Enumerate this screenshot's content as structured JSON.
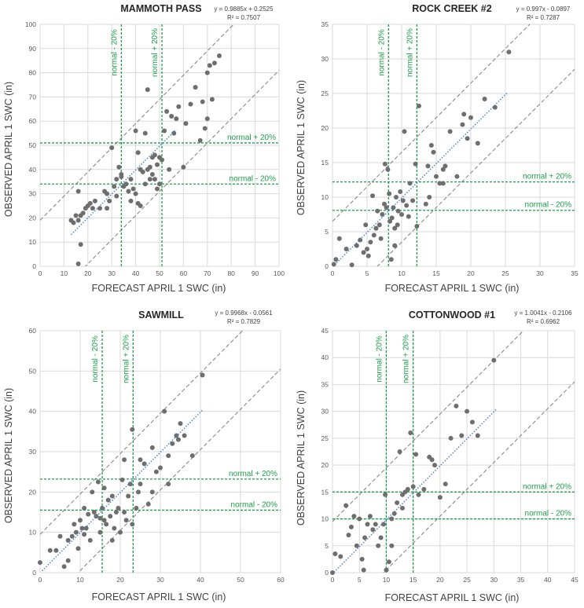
{
  "colors": {
    "points": "#6e6e6e",
    "bounds": "#7f7f7f",
    "normal_lines": "#1e9e4a",
    "trend": "#4a7ec3",
    "grid": "#d9d9d9"
  },
  "chart_data": [
    {
      "type": "scatter",
      "title": "MAMMOTH PASS",
      "equation": "y = 0.9885x + 0.2525",
      "r2": "R² = 0.7507",
      "xlabel": "FORECAST APRIL 1 SWC (in)",
      "ylabel": "OBSERVED APRIL 1 SWC (in)",
      "xlim": [
        0,
        100
      ],
      "ylim": [
        0,
        100
      ],
      "step": 10,
      "xticks": [
        "0",
        "10",
        "20",
        "30",
        "40",
        "50",
        "60",
        "70",
        "80",
        "90",
        "100"
      ],
      "yticks": [
        "0",
        "10",
        "20",
        "30",
        "40",
        "50",
        "60",
        "70",
        "80",
        "90",
        "100"
      ],
      "normal_low": 34,
      "normal_high": 51,
      "labels": {
        "vlow": "normal - 20%",
        "vhigh": "normal + 20%",
        "hlow": "normal - 20%",
        "hhigh": "normal + 20%"
      },
      "trend": {
        "slope": 0.9885,
        "intercept": 0.2525,
        "x_range": [
          13,
          57
        ]
      },
      "bound_upper": {
        "slope": 1,
        "intercept": 19
      },
      "bound_lower": {
        "slope": 1,
        "intercept": -19
      },
      "points": [
        [
          16,
          1
        ],
        [
          17,
          9
        ],
        [
          13,
          19
        ],
        [
          14,
          18
        ],
        [
          15,
          21
        ],
        [
          16,
          31
        ],
        [
          16,
          19
        ],
        [
          17,
          21
        ],
        [
          18,
          22
        ],
        [
          19,
          24
        ],
        [
          20,
          25
        ],
        [
          21,
          26
        ],
        [
          22,
          24
        ],
        [
          23,
          27
        ],
        [
          25,
          24
        ],
        [
          27,
          31
        ],
        [
          28,
          30
        ],
        [
          28,
          24
        ],
        [
          29,
          27
        ],
        [
          30,
          49
        ],
        [
          31,
          33
        ],
        [
          32,
          29
        ],
        [
          32,
          36
        ],
        [
          33,
          41
        ],
        [
          34,
          38
        ],
        [
          34,
          37
        ],
        [
          35,
          33
        ],
        [
          36,
          34
        ],
        [
          37,
          31
        ],
        [
          38,
          36
        ],
        [
          38,
          27
        ],
        [
          39,
          32
        ],
        [
          40,
          30
        ],
        [
          41,
          26
        ],
        [
          41,
          47
        ],
        [
          42,
          25
        ],
        [
          42,
          40
        ],
        [
          43,
          39
        ],
        [
          44,
          34
        ],
        [
          44,
          55
        ],
        [
          45,
          73
        ],
        [
          45,
          40
        ],
        [
          46,
          41
        ],
        [
          46,
          36
        ],
        [
          47,
          38
        ],
        [
          47,
          45
        ],
        [
          48,
          36
        ],
        [
          48,
          46
        ],
        [
          49,
          32
        ],
        [
          49,
          42
        ],
        [
          50,
          34
        ],
        [
          50,
          45
        ],
        [
          51,
          44
        ],
        [
          52,
          56
        ],
        [
          53,
          64
        ],
        [
          54,
          40
        ],
        [
          55,
          62
        ],
        [
          56,
          55
        ],
        [
          57,
          61
        ],
        [
          58,
          66
        ],
        [
          60,
          41
        ],
        [
          61,
          59
        ],
        [
          63,
          67
        ],
        [
          65,
          74
        ],
        [
          67,
          52
        ],
        [
          68,
          68
        ],
        [
          69,
          57
        ],
        [
          70,
          80
        ],
        [
          71,
          83
        ],
        [
          72,
          69
        ],
        [
          73,
          84
        ],
        [
          75,
          87
        ],
        [
          70,
          61
        ],
        [
          40,
          56
        ]
      ]
    },
    {
      "type": "scatter",
      "title": "ROCK CREEK #2",
      "equation": "y = 0.997x - 0.0897",
      "r2": "R² = 0.7287",
      "xlabel": "FORECAST APRIL 1 SWC (in)",
      "ylabel": "OBSERVED APRIL 1 SWC (in)",
      "xlim": [
        0,
        35
      ],
      "ylim": [
        0,
        35
      ],
      "step": 5,
      "xticks": [
        "0",
        "5",
        "10",
        "15",
        "20",
        "25",
        "30",
        "35"
      ],
      "yticks": [
        "0",
        "5",
        "10",
        "15",
        "20",
        "25",
        "30",
        "35"
      ],
      "normal_low": 8.1,
      "normal_high": 12.2,
      "labels": {
        "vlow": "normal - 20%",
        "vhigh": "normal + 20%",
        "hlow": "normal - 20%",
        "hhigh": "normal + 20%"
      },
      "trend": {
        "slope": 0.997,
        "intercept": -0.0897,
        "x_range": [
          0.3,
          25.3
        ]
      },
      "bound_upper": {
        "slope": 1,
        "intercept": 6.5
      },
      "bound_lower": {
        "slope": 1,
        "intercept": -6.5
      },
      "points": [
        [
          0.2,
          0.3
        ],
        [
          0.5,
          1.0
        ],
        [
          1.0,
          4.0
        ],
        [
          2.0,
          2.5
        ],
        [
          2.8,
          0.2
        ],
        [
          3.5,
          3.0
        ],
        [
          4.0,
          3.8
        ],
        [
          4.5,
          2.0
        ],
        [
          4.8,
          6.0
        ],
        [
          5.0,
          2.5
        ],
        [
          5.2,
          1.5
        ],
        [
          5.5,
          3.5
        ],
        [
          5.8,
          10.2
        ],
        [
          6.0,
          4.5
        ],
        [
          6.3,
          5.5
        ],
        [
          6.5,
          8.0
        ],
        [
          6.8,
          6.0
        ],
        [
          7.0,
          4.0
        ],
        [
          7.2,
          7.5
        ],
        [
          7.5,
          9.0
        ],
        [
          7.6,
          14.8
        ],
        [
          7.8,
          8.5
        ],
        [
          8.0,
          14.0
        ],
        [
          8.2,
          10.5
        ],
        [
          8.3,
          6.5
        ],
        [
          8.5,
          1.0
        ],
        [
          8.6,
          7.0
        ],
        [
          8.8,
          8.5
        ],
        [
          9.0,
          5.5
        ],
        [
          9.2,
          10.0
        ],
        [
          9.4,
          6.0
        ],
        [
          9.5,
          8.0
        ],
        [
          9.8,
          10.8
        ],
        [
          10.0,
          7.5
        ],
        [
          10.2,
          9.5
        ],
        [
          10.4,
          19.5
        ],
        [
          10.7,
          8.8
        ],
        [
          11.0,
          7.2
        ],
        [
          11.2,
          12.0
        ],
        [
          11.6,
          9.5
        ],
        [
          12.0,
          14.8
        ],
        [
          12.2,
          5.8
        ],
        [
          12.5,
          23.2
        ],
        [
          13.5,
          9.0
        ],
        [
          13.8,
          14.5
        ],
        [
          14.0,
          10.0
        ],
        [
          14.3,
          17.5
        ],
        [
          14.6,
          16.5
        ],
        [
          15.0,
          13.0
        ],
        [
          15.5,
          12.0
        ],
        [
          16.0,
          14.0
        ],
        [
          16.3,
          14.5
        ],
        [
          17.0,
          19.5
        ],
        [
          18.0,
          13.0
        ],
        [
          18.8,
          20.5
        ],
        [
          19.0,
          22.0
        ],
        [
          19.5,
          18.5
        ],
        [
          20.0,
          21.5
        ],
        [
          21.0,
          17.8
        ],
        [
          22.0,
          24.2
        ],
        [
          25.5,
          31.0
        ],
        [
          23.5,
          23.0
        ],
        [
          16.0,
          12.0
        ],
        [
          9.0,
          3.0
        ]
      ]
    },
    {
      "type": "scatter",
      "title": "SAWMILL",
      "equation": "y = 0.9968x - 0.0561",
      "r2": "R² = 0.7829",
      "xlabel": "FORECAST APRIL 1 SWC (in)",
      "ylabel": "OBSERVED APRIL 1 SWC (in)",
      "xlim": [
        0,
        60
      ],
      "ylim": [
        0,
        60
      ],
      "step": 10,
      "xticks": [
        "0",
        "10",
        "20",
        "30",
        "40",
        "50",
        "60"
      ],
      "yticks": [
        "0",
        "10",
        "20",
        "30",
        "40",
        "50",
        "60"
      ],
      "normal_low": 15.5,
      "normal_high": 23.2,
      "labels": {
        "vlow": "normal - 20%",
        "vhigh": "normal + 20%",
        "hlow": "normal - 20%",
        "hhigh": "normal + 20%"
      },
      "trend": {
        "slope": 0.9968,
        "intercept": -0.0561,
        "x_range": [
          0.5,
          40.5
        ]
      },
      "bound_upper": {
        "slope": 1,
        "intercept": 9.5
      },
      "bound_lower": {
        "slope": 1,
        "intercept": -9.5
      },
      "points": [
        [
          0,
          2.5
        ],
        [
          2.5,
          5.5
        ],
        [
          4,
          5.5
        ],
        [
          5,
          9
        ],
        [
          6,
          1.5
        ],
        [
          7,
          8
        ],
        [
          7,
          3
        ],
        [
          8,
          9
        ],
        [
          8.5,
          12
        ],
        [
          9,
          10
        ],
        [
          9.5,
          6
        ],
        [
          10,
          13
        ],
        [
          10.5,
          11
        ],
        [
          11,
          9.5
        ],
        [
          11,
          16
        ],
        [
          11.5,
          11
        ],
        [
          12,
          14.5
        ],
        [
          12.5,
          8
        ],
        [
          13,
          20
        ],
        [
          13.5,
          15
        ],
        [
          14,
          14
        ],
        [
          14.5,
          22.5
        ],
        [
          15,
          13.5
        ],
        [
          15.5,
          16
        ],
        [
          16,
          13
        ],
        [
          16,
          21
        ],
        [
          16.5,
          12
        ],
        [
          17,
          18
        ],
        [
          17.5,
          14
        ],
        [
          18,
          19
        ],
        [
          18,
          8
        ],
        [
          18.5,
          11
        ],
        [
          19,
          15
        ],
        [
          19.5,
          16
        ],
        [
          20,
          10
        ],
        [
          20.5,
          23
        ],
        [
          21,
          15
        ],
        [
          21,
          28
        ],
        [
          21.5,
          13
        ],
        [
          22,
          19
        ],
        [
          22.5,
          22
        ],
        [
          23,
          12
        ],
        [
          23,
          35.5
        ],
        [
          24,
          16
        ],
        [
          25,
          22
        ],
        [
          25,
          28
        ],
        [
          26,
          27
        ],
        [
          27,
          17
        ],
        [
          28,
          20
        ],
        [
          28,
          31
        ],
        [
          29,
          25
        ],
        [
          30,
          26
        ],
        [
          31,
          40
        ],
        [
          32,
          22
        ],
        [
          32,
          29
        ],
        [
          33,
          32
        ],
        [
          34,
          34
        ],
        [
          34.5,
          33
        ],
        [
          35,
          37
        ],
        [
          36,
          34
        ],
        [
          38,
          29
        ],
        [
          40.5,
          49
        ],
        [
          15,
          10
        ],
        [
          24.5,
          20
        ]
      ]
    },
    {
      "type": "scatter",
      "title": "COTTONWOOD #1",
      "equation": "y = 1.0041x - 0.2106",
      "r2": "R² = 0.6962",
      "xlabel": "FORECAST APRIL 1 SWC (in)",
      "ylabel": "OBSERVED APRIL 1 SWC (in)",
      "xlim": [
        0,
        45
      ],
      "ylim": [
        0,
        45
      ],
      "step": 5,
      "xticks": [
        "0",
        "5",
        "10",
        "15",
        "20",
        "25",
        "30",
        "35",
        "40",
        "45"
      ],
      "yticks": [
        "0",
        "5",
        "10",
        "15",
        "20",
        "25",
        "30",
        "35",
        "40",
        "45"
      ],
      "normal_low": 10,
      "normal_high": 15,
      "labels": {
        "vlow": "normal - 20%",
        "vhigh": "normal + 20%",
        "hlow": "normal - 20%",
        "hhigh": "normal + 20%"
      },
      "trend": {
        "slope": 1.0041,
        "intercept": -0.2106,
        "x_range": [
          0.3,
          30.5
        ]
      },
      "bound_upper": {
        "slope": 1,
        "intercept": 9.5
      },
      "bound_lower": {
        "slope": 1,
        "intercept": -9.5
      },
      "points": [
        [
          0,
          0
        ],
        [
          0.5,
          3.5
        ],
        [
          1.5,
          3
        ],
        [
          2.5,
          12.5
        ],
        [
          3,
          7
        ],
        [
          3.5,
          8.5
        ],
        [
          4,
          10.5
        ],
        [
          4.5,
          5
        ],
        [
          5,
          10
        ],
        [
          5.5,
          2.5
        ],
        [
          5.8,
          0.5
        ],
        [
          6,
          6.5
        ],
        [
          6.5,
          9
        ],
        [
          7,
          10.5
        ],
        [
          7.5,
          8
        ],
        [
          8,
          9
        ],
        [
          8.5,
          5
        ],
        [
          9,
          6.5
        ],
        [
          9.5,
          9
        ],
        [
          9.8,
          14.5
        ],
        [
          10,
          0.5
        ],
        [
          10.5,
          2
        ],
        [
          11,
          10
        ],
        [
          11.5,
          11
        ],
        [
          12,
          13
        ],
        [
          12.5,
          22.5
        ],
        [
          13,
          14.5
        ],
        [
          13.5,
          15
        ],
        [
          14,
          15.5
        ],
        [
          14.5,
          26
        ],
        [
          15,
          16
        ],
        [
          15.5,
          22
        ],
        [
          16,
          14.5
        ],
        [
          17,
          15.5
        ],
        [
          18,
          21.5
        ],
        [
          18.5,
          21
        ],
        [
          19,
          20
        ],
        [
          20,
          14
        ],
        [
          21,
          16.5
        ],
        [
          22,
          25
        ],
        [
          23,
          31
        ],
        [
          24,
          25.5
        ],
        [
          25,
          30
        ],
        [
          26,
          28
        ],
        [
          27,
          25.5
        ],
        [
          30,
          39.5
        ],
        [
          11,
          5
        ],
        [
          13,
          12
        ]
      ]
    }
  ]
}
